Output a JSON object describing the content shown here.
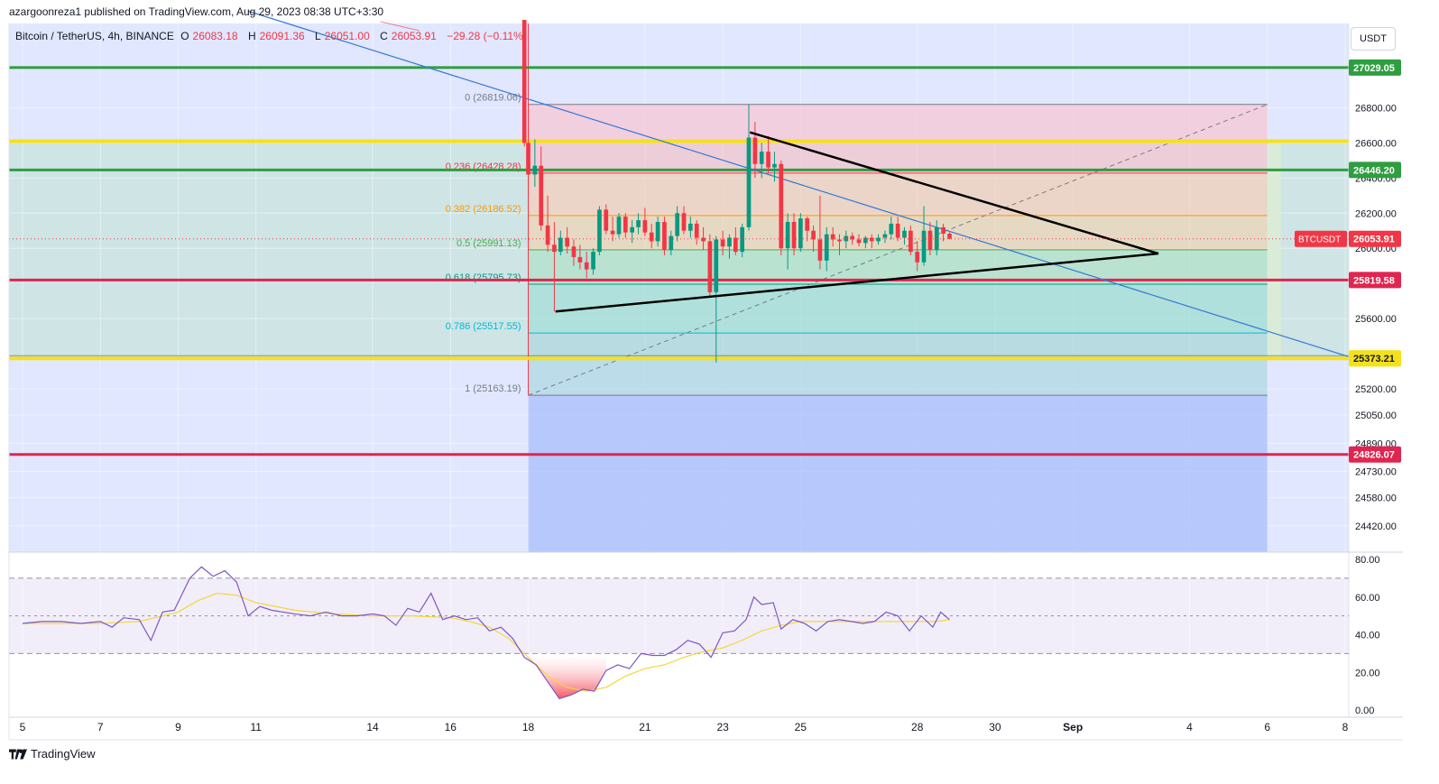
{
  "header": {
    "publisher": "azargoonreza1 published on TradingView.com, Aug 29, 2023 08:38 UTC+3:30"
  },
  "legend": {
    "symbol": "Bitcoin / TetherUS, 4h, BINANCE",
    "open_key": "O",
    "open": "26083.18",
    "high_key": "H",
    "high": "26091.36",
    "low_key": "L",
    "low": "26051.00",
    "close_key": "C",
    "close": "26053.91",
    "change": "−29.28 (−0.11%)"
  },
  "unit_button": "USDT",
  "footer": {
    "brand": "TradingView"
  },
  "colors": {
    "green_line": "#2e9e40",
    "red_line": "#e0254f",
    "yellow_line": "#f5e11b",
    "up": "#089981",
    "down": "#f23645",
    "rsi": "#7e57c2",
    "rsi_ma": "#f7d53b",
    "trend_blue": "#3a7bd5"
  },
  "chart_data": {
    "type": "candlestick",
    "symbol": "BTCUSDT",
    "timeframe": "4h",
    "ylim": [
      24270,
      27280
    ],
    "price_axis_ticks": [
      "26800.00",
      "26600.00",
      "26400.00",
      "26200.00",
      "26000.00",
      "25600.00",
      "25200.00",
      "25050.00",
      "24890.00",
      "24730.00",
      "24580.00",
      "24420.00"
    ],
    "x_ticks": [
      {
        "label": "5",
        "day": 5
      },
      {
        "label": "7",
        "day": 7
      },
      {
        "label": "9",
        "day": 9
      },
      {
        "label": "11",
        "day": 11
      },
      {
        "label": "14",
        "day": 14
      },
      {
        "label": "16",
        "day": 16
      },
      {
        "label": "18",
        "day": 18
      },
      {
        "label": "21",
        "day": 21
      },
      {
        "label": "23",
        "day": 23
      },
      {
        "label": "25",
        "day": 25
      },
      {
        "label": "28",
        "day": 28
      },
      {
        "label": "30",
        "day": 30
      },
      {
        "label": "Sep",
        "day": 32
      },
      {
        "label": "4",
        "day": 35
      },
      {
        "label": "6",
        "day": 37
      },
      {
        "label": "8",
        "day": 39
      }
    ],
    "horizontal_levels": [
      {
        "price": 27029.05,
        "label": "27029.05",
        "color": "green"
      },
      {
        "price": 26446.2,
        "label": "26446.20",
        "color": "green"
      },
      {
        "price": 26610,
        "label": "",
        "color": "yellow"
      },
      {
        "price": 25819.58,
        "label": "25819.58",
        "color": "red"
      },
      {
        "price": 25373.21,
        "label": "25373.21",
        "color": "yellow"
      },
      {
        "price": 24826.07,
        "label": "24826.07",
        "color": "red"
      }
    ],
    "current_price": {
      "symbol": "BTCUSDT",
      "label": "26053.91",
      "price": 26053.91
    },
    "fibonacci": {
      "start_day": 18,
      "end_day": 37,
      "levels": [
        {
          "ratio": "0",
          "label": "0 (26819.06)",
          "price": 26819.06,
          "color": "#787b86"
        },
        {
          "ratio": "0.236",
          "label": "0.236 (26428.28)",
          "price": 26428.28,
          "color": "#f23645"
        },
        {
          "ratio": "0.382",
          "label": "0.382 (26186.52)",
          "price": 26186.52,
          "color": "#ff9800"
        },
        {
          "ratio": "0.5",
          "label": "0.5 (25991.13)",
          "price": 25991.13,
          "color": "#4caf50"
        },
        {
          "ratio": "0.618",
          "label": "0.618 (25795.73)",
          "price": 25795.73,
          "color": "#089981"
        },
        {
          "ratio": "0.786",
          "label": "0.786 (25517.55)",
          "price": 25517.55,
          "color": "#00bcd4"
        },
        {
          "ratio": "1",
          "label": "1 (25163.19)",
          "price": 25163.19,
          "color": "#787b86"
        }
      ]
    },
    "triangle": {
      "upper": [
        [
          23.7,
          26660
        ],
        [
          34.2,
          25970
        ]
      ],
      "lower": [
        [
          18.7,
          25640
        ],
        [
          34.2,
          25970
        ]
      ]
    },
    "trendline_blue": [
      [
        10.8,
        27350
      ],
      [
        41,
        25250
      ]
    ],
    "candles": [
      [
        17.9,
        27300,
        27300,
        26580,
        26600
      ],
      [
        18.0,
        26600,
        26820,
        26300,
        26420
      ],
      [
        18.17,
        26420,
        26620,
        26350,
        26470
      ],
      [
        18.33,
        26470,
        26580,
        26100,
        26130
      ],
      [
        18.5,
        26130,
        26300,
        25980,
        26020
      ],
      [
        18.67,
        26020,
        26150,
        25640,
        25980
      ],
      [
        18.83,
        25980,
        26100,
        25960,
        26060
      ],
      [
        19.0,
        26060,
        26120,
        25970,
        26010
      ],
      [
        19.17,
        26010,
        26050,
        25900,
        25950
      ],
      [
        19.33,
        25950,
        26020,
        25880,
        25920
      ],
      [
        19.5,
        25920,
        25980,
        25830,
        25880
      ],
      [
        19.67,
        25880,
        26000,
        25850,
        25980
      ],
      [
        19.83,
        25980,
        26240,
        25960,
        26220
      ],
      [
        20.0,
        26220,
        26250,
        26080,
        26100
      ],
      [
        20.17,
        26100,
        26180,
        26040,
        26080
      ],
      [
        20.33,
        26080,
        26200,
        26060,
        26180
      ],
      [
        20.5,
        26180,
        26200,
        26060,
        26090
      ],
      [
        20.67,
        26090,
        26160,
        26030,
        26120
      ],
      [
        20.83,
        26120,
        26200,
        26080,
        26160
      ],
      [
        21.0,
        26160,
        26230,
        26070,
        26090
      ],
      [
        21.17,
        26090,
        26140,
        26000,
        26040
      ],
      [
        21.33,
        26040,
        26180,
        26010,
        26150
      ],
      [
        21.5,
        26150,
        26180,
        25960,
        25990
      ],
      [
        21.67,
        25990,
        26100,
        25960,
        26070
      ],
      [
        21.83,
        26070,
        26240,
        26040,
        26200
      ],
      [
        22.0,
        26200,
        26240,
        26080,
        26100
      ],
      [
        22.17,
        26100,
        26180,
        26060,
        26140
      ],
      [
        22.33,
        26140,
        26160,
        26020,
        26060
      ],
      [
        22.5,
        26060,
        26120,
        25990,
        26040
      ],
      [
        22.67,
        26040,
        26080,
        25720,
        25750
      ],
      [
        22.83,
        25750,
        26070,
        25350,
        26050
      ],
      [
        23.0,
        26050,
        26100,
        25960,
        26010
      ],
      [
        23.17,
        26010,
        26080,
        25940,
        26060
      ],
      [
        23.33,
        26060,
        26120,
        25960,
        25980
      ],
      [
        23.5,
        25980,
        26140,
        25950,
        26120
      ],
      [
        23.67,
        26120,
        26820,
        26100,
        26630
      ],
      [
        23.83,
        26630,
        26720,
        26400,
        26480
      ],
      [
        24.0,
        26480,
        26600,
        26400,
        26550
      ],
      [
        24.17,
        26550,
        26640,
        26430,
        26460
      ],
      [
        24.33,
        26460,
        26550,
        26380,
        26480
      ],
      [
        24.5,
        26480,
        26500,
        25960,
        26000
      ],
      [
        24.67,
        26000,
        26200,
        25880,
        26150
      ],
      [
        24.83,
        26150,
        26200,
        25960,
        26000
      ],
      [
        25.0,
        26000,
        26200,
        25980,
        26170
      ],
      [
        25.17,
        26170,
        26180,
        26040,
        26100
      ],
      [
        25.33,
        26100,
        26130,
        25980,
        26050
      ],
      [
        25.5,
        26050,
        26300,
        25880,
        25930
      ],
      [
        25.67,
        25930,
        26120,
        25870,
        26080
      ],
      [
        25.83,
        26080,
        26120,
        26010,
        26050
      ],
      [
        26.0,
        26050,
        26080,
        25960,
        26040
      ],
      [
        26.17,
        26040,
        26100,
        26000,
        26070
      ],
      [
        26.33,
        26070,
        26090,
        26020,
        26050
      ],
      [
        26.5,
        26050,
        26080,
        26010,
        26030
      ],
      [
        26.67,
        26030,
        26070,
        26000,
        26060
      ],
      [
        26.83,
        26060,
        26080,
        26000,
        26040
      ],
      [
        27.0,
        26040,
        26080,
        26020,
        26060
      ],
      [
        27.17,
        26060,
        26100,
        26030,
        26080
      ],
      [
        27.33,
        26080,
        26180,
        26050,
        26140
      ],
      [
        27.5,
        26140,
        26180,
        26040,
        26060
      ],
      [
        27.67,
        26060,
        26120,
        26020,
        26100
      ],
      [
        27.83,
        26100,
        26130,
        25960,
        25980
      ],
      [
        28.0,
        25980,
        26040,
        25870,
        25920
      ],
      [
        28.17,
        25920,
        26240,
        25900,
        26100
      ],
      [
        28.33,
        26100,
        26150,
        25960,
        25990
      ],
      [
        28.5,
        25990,
        26160,
        25960,
        26120
      ],
      [
        28.67,
        26120,
        26140,
        26040,
        26083
      ],
      [
        28.83,
        26083,
        26091,
        26051,
        26054
      ]
    ],
    "rsi": {
      "axis_ticks": [
        "80.00",
        "60.00",
        "40.00",
        "20.00",
        "0.00"
      ],
      "upper_band": 70,
      "lower_band": 30,
      "mid": 50,
      "values": [
        [
          5,
          46
        ],
        [
          5.5,
          47
        ],
        [
          6,
          47
        ],
        [
          6.5,
          46
        ],
        [
          7,
          47
        ],
        [
          7.3,
          44
        ],
        [
          7.6,
          49
        ],
        [
          8,
          48
        ],
        [
          8.3,
          37
        ],
        [
          8.6,
          52
        ],
        [
          8.9,
          53
        ],
        [
          9.3,
          70
        ],
        [
          9.6,
          76
        ],
        [
          9.9,
          71
        ],
        [
          10.2,
          74
        ],
        [
          10.5,
          68
        ],
        [
          10.8,
          50
        ],
        [
          11.1,
          55
        ],
        [
          11.4,
          53
        ],
        [
          11.7,
          52
        ],
        [
          12,
          51
        ],
        [
          12.4,
          50
        ],
        [
          12.8,
          52
        ],
        [
          13.2,
          50
        ],
        [
          13.6,
          50
        ],
        [
          14,
          51
        ],
        [
          14.3,
          50
        ],
        [
          14.6,
          45
        ],
        [
          14.9,
          54
        ],
        [
          15.2,
          52
        ],
        [
          15.5,
          62
        ],
        [
          15.8,
          48
        ],
        [
          16.1,
          50
        ],
        [
          16.4,
          48
        ],
        [
          16.7,
          49
        ],
        [
          17,
          42
        ],
        [
          17.3,
          44
        ],
        [
          17.6,
          38
        ],
        [
          17.9,
          28
        ],
        [
          18.2,
          24
        ],
        [
          18.5,
          15
        ],
        [
          18.8,
          6
        ],
        [
          19.1,
          8
        ],
        [
          19.4,
          11
        ],
        [
          19.7,
          10
        ],
        [
          20.0,
          21
        ],
        [
          20.3,
          24
        ],
        [
          20.6,
          22
        ],
        [
          20.9,
          30
        ],
        [
          21.2,
          29
        ],
        [
          21.5,
          29
        ],
        [
          21.8,
          32
        ],
        [
          22.1,
          37
        ],
        [
          22.4,
          35
        ],
        [
          22.7,
          28
        ],
        [
          23.0,
          41
        ],
        [
          23.3,
          42
        ],
        [
          23.6,
          48
        ],
        [
          23.8,
          60
        ],
        [
          24.0,
          56
        ],
        [
          24.3,
          57
        ],
        [
          24.5,
          43
        ],
        [
          24.8,
          48
        ],
        [
          25.1,
          46
        ],
        [
          25.4,
          42
        ],
        [
          25.7,
          47
        ],
        [
          26.0,
          48
        ],
        [
          26.3,
          47
        ],
        [
          26.6,
          46
        ],
        [
          26.9,
          47
        ],
        [
          27.2,
          52
        ],
        [
          27.5,
          50
        ],
        [
          27.8,
          42
        ],
        [
          28.1,
          50
        ],
        [
          28.4,
          44
        ],
        [
          28.6,
          52
        ],
        [
          28.83,
          48
        ]
      ],
      "ma": [
        [
          5,
          46
        ],
        [
          6,
          46
        ],
        [
          7,
          46
        ],
        [
          8,
          47
        ],
        [
          9,
          52
        ],
        [
          9.5,
          58
        ],
        [
          10,
          62
        ],
        [
          10.5,
          61
        ],
        [
          11,
          57
        ],
        [
          12,
          53
        ],
        [
          13,
          51
        ],
        [
          14,
          50
        ],
        [
          15,
          50
        ],
        [
          16,
          49
        ],
        [
          16.5,
          47
        ],
        [
          17,
          44
        ],
        [
          17.5,
          38
        ],
        [
          18,
          28
        ],
        [
          18.5,
          18
        ],
        [
          19,
          12
        ],
        [
          19.5,
          10
        ],
        [
          20,
          12
        ],
        [
          20.5,
          18
        ],
        [
          21,
          22
        ],
        [
          21.5,
          24
        ],
        [
          22,
          28
        ],
        [
          22.5,
          31
        ],
        [
          23,
          33
        ],
        [
          23.5,
          37
        ],
        [
          24,
          42
        ],
        [
          24.5,
          45
        ],
        [
          25,
          47
        ],
        [
          25.5,
          47
        ],
        [
          26,
          47
        ],
        [
          26.5,
          47
        ],
        [
          27,
          47
        ],
        [
          27.5,
          47
        ],
        [
          28,
          47
        ],
        [
          28.5,
          47
        ],
        [
          28.83,
          48
        ]
      ]
    }
  }
}
